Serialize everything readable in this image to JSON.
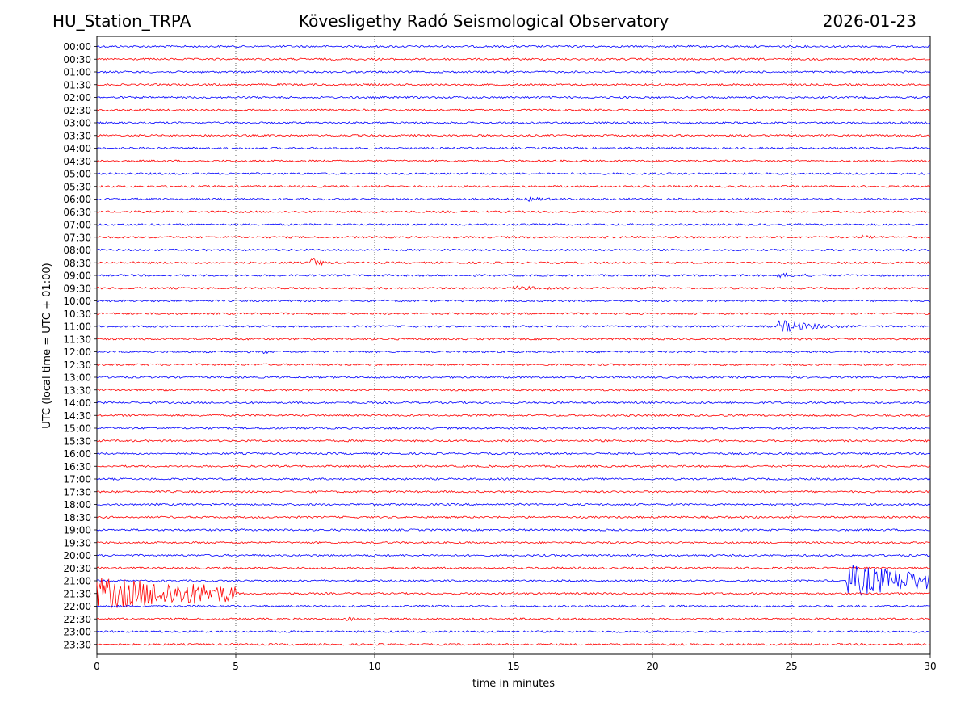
{
  "header": {
    "station": "HU_Station_TRPA",
    "observatory": "Kövesligethy Radó Seismological Observatory",
    "date": "2026-01-23"
  },
  "chart_data": {
    "type": "line",
    "title": "Kövesligethy Radó Seismological Observatory",
    "xlabel": "time in minutes",
    "ylabel": "UTC (local time = UTC + 01:00)",
    "xlim": [
      0,
      30
    ],
    "xticks": [
      0,
      5,
      10,
      15,
      20,
      25,
      30
    ],
    "xtick_labels": [
      "0",
      "5",
      "10",
      "15",
      "20",
      "25",
      "30"
    ],
    "grid": "vertical dotted at x ticks",
    "row_labels": [
      "00:00",
      "00:30",
      "01:00",
      "01:30",
      "02:00",
      "02:30",
      "03:00",
      "03:30",
      "04:00",
      "04:30",
      "05:00",
      "05:30",
      "06:00",
      "06:30",
      "07:00",
      "07:30",
      "08:00",
      "08:30",
      "09:00",
      "09:30",
      "10:00",
      "10:30",
      "11:00",
      "11:30",
      "12:00",
      "12:30",
      "13:00",
      "13:30",
      "14:00",
      "14:30",
      "15:00",
      "15:30",
      "16:00",
      "16:30",
      "17:00",
      "17:30",
      "18:00",
      "18:30",
      "19:00",
      "19:30",
      "20:00",
      "20:30",
      "21:00",
      "21:30",
      "22:00",
      "22:30",
      "23:00",
      "23:30"
    ],
    "colors": {
      "even_rows": "#0000ff",
      "odd_rows": "#ff0000"
    },
    "events": [
      {
        "row": "06:00",
        "start_min": 15.5,
        "end_min": 18.5,
        "amplitude": "small"
      },
      {
        "row": "07:30",
        "start_min": 27.5,
        "end_min": 30,
        "amplitude": "small"
      },
      {
        "row": "08:30",
        "start_min": 7.6,
        "end_min": 9.0,
        "amplitude": "medium"
      },
      {
        "row": "09:00",
        "start_min": 24.5,
        "end_min": 30,
        "amplitude": "small"
      },
      {
        "row": "09:30",
        "start_min": 15.0,
        "end_min": 21.5,
        "amplitude": "small"
      },
      {
        "row": "11:00",
        "start_min": 24.5,
        "end_min": 28.5,
        "amplitude": "medium"
      },
      {
        "row": "12:00",
        "start_min": 6.0,
        "end_min": 7.0,
        "amplitude": "small"
      },
      {
        "row": "21:00",
        "start_min": 27.0,
        "end_min": 30,
        "amplitude": "large"
      },
      {
        "row": "21:30",
        "start_min": 0.0,
        "end_min": 5.0,
        "amplitude": "large"
      },
      {
        "row": "22:30",
        "start_min": 9.0,
        "end_min": 10.5,
        "amplitude": "small"
      }
    ]
  }
}
